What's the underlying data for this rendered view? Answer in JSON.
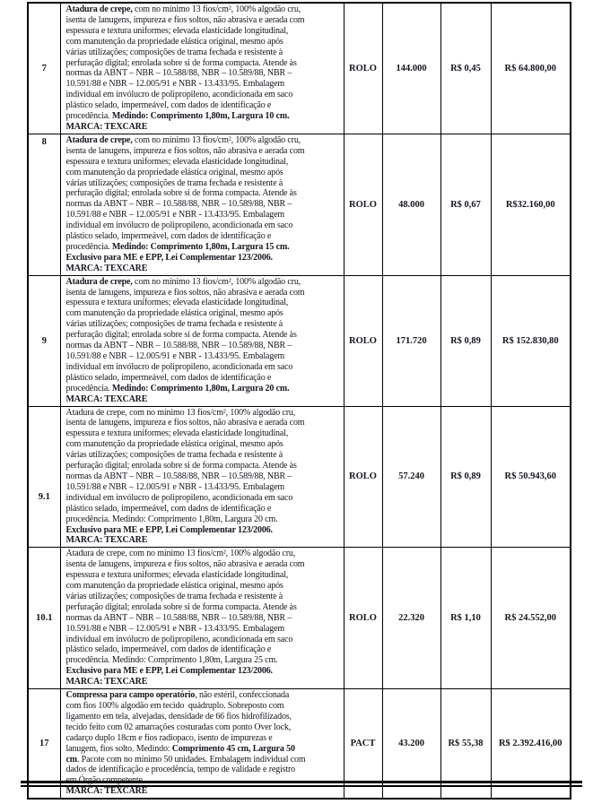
{
  "colors": {
    "ink": "#16161f",
    "border": "#000000",
    "page_bg": "#ffffff"
  },
  "table": {
    "rows": [
      {
        "item": "7",
        "unit": "ROLO",
        "quantity": "144.000",
        "unit_price": "R$ 0,45",
        "total_price": "R$ 64.800,00",
        "description": [
          {
            "b": true,
            "t": "Atadura de crepe,"
          },
          {
            "b": false,
            "t": " com no mínimo 13 fios/cm², 100% algodão cru,\nisenta de lanugens, impureza e fios soltos, não abrasiva e aerada com\nespessura e textura uniformes; elevada elasticidade longitudinal,\ncom manutenção da propriedade elástica original, mesmo após\nvárias utilizações; composições de trama fechada e resistente à\nperfuração digital; enrolada sobre si de forma compacta. Atende às\nnormas da ABNT – NBR – 10.588/88, NBR – 10.589/88, NBR –\n10.591/88 e NBR – 12.005/91 e NBR - 13.433/95. Embalagem\nindividual em invólucro de polipropileno, acondicionada em saco\nplástico selado, impermeável, com dados de identificação e\nprocedência. "
          },
          {
            "b": true,
            "t": "Medindo: Comprimento 1,80m, Largura 10 cm.\nMARCA: TEXCARE"
          }
        ]
      },
      {
        "item": "8",
        "unit": "ROLO",
        "quantity": "48.000",
        "unit_price": "R$ 0,67",
        "total_price": "R$32.160,00",
        "description": [
          {
            "b": true,
            "t": "Atadura de crepe,"
          },
          {
            "b": false,
            "t": " com no mínimo 13 fios/cm², 100% algodão cru,\nisenta de lanugens, impureza e fios soltos, não abrasiva e aerada com\nespessura e textura uniformes; elevada elasticidade longitudinal,\ncom manutenção da propriedade elástica original, mesmo após\nvárias utilizações; composições de trama fechada e resistente à\nperfuração digital; enrolada sobre si de forma compacta. Atende às\nnormas da ABNT – NBR – 10.588/88, NBR – 10.589/88, NBR –\n10.591/88 e NBR – 12.005/91 e NBR - 13.433/95. Embalagem\nindividual em invólucro de polipropileno, acondicionada em saco\nplástico selado, impermeável, com dados de identificação e\nprocedência. "
          },
          {
            "b": true,
            "t": "Medindo: Comprimento 1,80m, Largura 15 cm.\nExclusivo para ME e EPP, Lei Complementar 123/2006.\nMARCA: TEXCARE"
          }
        ]
      },
      {
        "item": "9",
        "unit": "ROLO",
        "quantity": "171.720",
        "unit_price": "R$ 0,89",
        "total_price": "R$ 152.830,80",
        "description": [
          {
            "b": true,
            "t": "Atadura de crepe,"
          },
          {
            "b": false,
            "t": " com no mínimo 13 fios/cm², 100% algodão cru,\nisenta de lanugens, impureza e fios soltos, não abrasiva e aerada com\nespessura e textura uniformes; elevada elasticidade longitudinal,\ncom manutenção da propriedade elástica original, mesmo após\nvárias utilizações; composições de trama fechada e resistente à\nperfuração digital; enrolada sobre si de forma compacta. Atende às\nnormas da ABNT – NBR – 10.588/88, NBR – 10.589/88, NBR –\n10.591/88 e NBR – 12.005/91 e NBR - 13.433/95. Embalagem\nindividual em invólucro de polipropileno, acondicionada em saco\nplástico selado, impermeável, com dados de identificação e\nprocedência. "
          },
          {
            "b": true,
            "t": "Medindo: Comprimento 1,80m, Largura 20 cm.\nMARCA: TEXCARE"
          }
        ]
      },
      {
        "item": "9.1",
        "unit": "ROLO",
        "quantity": "57.240",
        "unit_price": "R$ 0,89",
        "total_price": "R$ 50.943,60",
        "description": [
          {
            "b": false,
            "t": "Atadura de crepe, com no mínimo 13 fios/cm², 100% algodão cru,\nisenta de lanugens, impureza e fios soltos, não abrasiva e aerada com\nespessura e textura uniformes; elevada elasticidade longitudinal,\ncom manutenção da propriedade elástica original, mesmo após\nvárias utilizações; composições de trama fechada e resistente à\nperfuração digital; enrolada sobre si de forma compacta. Atende às\nnormas da ABNT – NBR – 10.588/88, NBR – 10.589/88, NBR –\n10.591/88 e NBR – 12.005/91 e NBR - 13.433/95. Embalagem\nindividual em invólucro de polipropileno, acondicionada em saco\nplástico selado, impermeável, com dados de identificação e\nprocedência. Medindo: Comprimento 1,80m, Largura 20 cm.\n"
          },
          {
            "b": true,
            "t": "Exclusivo para ME e EPP, Lei Complementar 123/2006.\nMARCA: TEXCARE"
          }
        ]
      },
      {
        "item": "10.1",
        "unit": "ROLO",
        "quantity": "22.320",
        "unit_price": "R$ 1,10",
        "total_price": "R$ 24.552,00",
        "description": [
          {
            "b": false,
            "t": "Atadura de crepe, com no mínimo 13 fios/cm², 100% algodão cru,\nisenta de lanugens, impureza e fios soltos, não abrasiva e aerada com\nespessura e textura uniformes; elevada elasticidade longitudinal,\ncom manutenção da propriedade elástica original, mesmo após\nvárias utilizações; composições de trama fechada e resistente à\nperfuração digital; enrolada sobre si de forma compacta. Atende às\nnormas da ABNT – NBR – 10.588/88, NBR – 10.589/88, NBR –\n10.591/88 e NBR – 12.005/91 e NBR - 13.433/95. Embalagem\nindividual em invólucro de polipropileno, acondicionada em saco\nplástico selado, impermeável, com dados de identificação e\nprocedência. Medindo: Comprimento 1,80m, Largura 25 cm.\n"
          },
          {
            "b": true,
            "t": "Exclusivo para ME e EPP, Lei Complementar 123/2006.\nMARCA: TEXCARE"
          }
        ]
      },
      {
        "item": "17",
        "unit": "PACT",
        "quantity": "43.200",
        "unit_price": "R$ 55,38",
        "total_price": "R$ 2.392.416,00",
        "description": [
          {
            "b": true,
            "t": "Compressa para campo operatório"
          },
          {
            "b": false,
            "t": ", não estéril, confeccionada\ncom fios 100% algodão em tecido  quádruplo. Sobreposto com\nligamento em tela, alvejadas, densidade de 66 fios hidrofilizados,\ntecido feito com 02 amarrações costuradas com ponto Over lock,\ncadarço duplo 18cm e fios radiopaco, isento de impurezas e\nlanugem, fios solto. Medindo: "
          },
          {
            "b": true,
            "t": "Comprimento 45 cm, Largura 50\ncm"
          },
          {
            "b": false,
            "t": ". Pacote com no mínimo 50 unidades. Embalagem individual com\ndados de identificação e procedência, tempo de validade e registro\nem Órgão competente.\n"
          },
          {
            "b": true,
            "t": "MARCA: TEXCARE"
          }
        ]
      }
    ]
  }
}
